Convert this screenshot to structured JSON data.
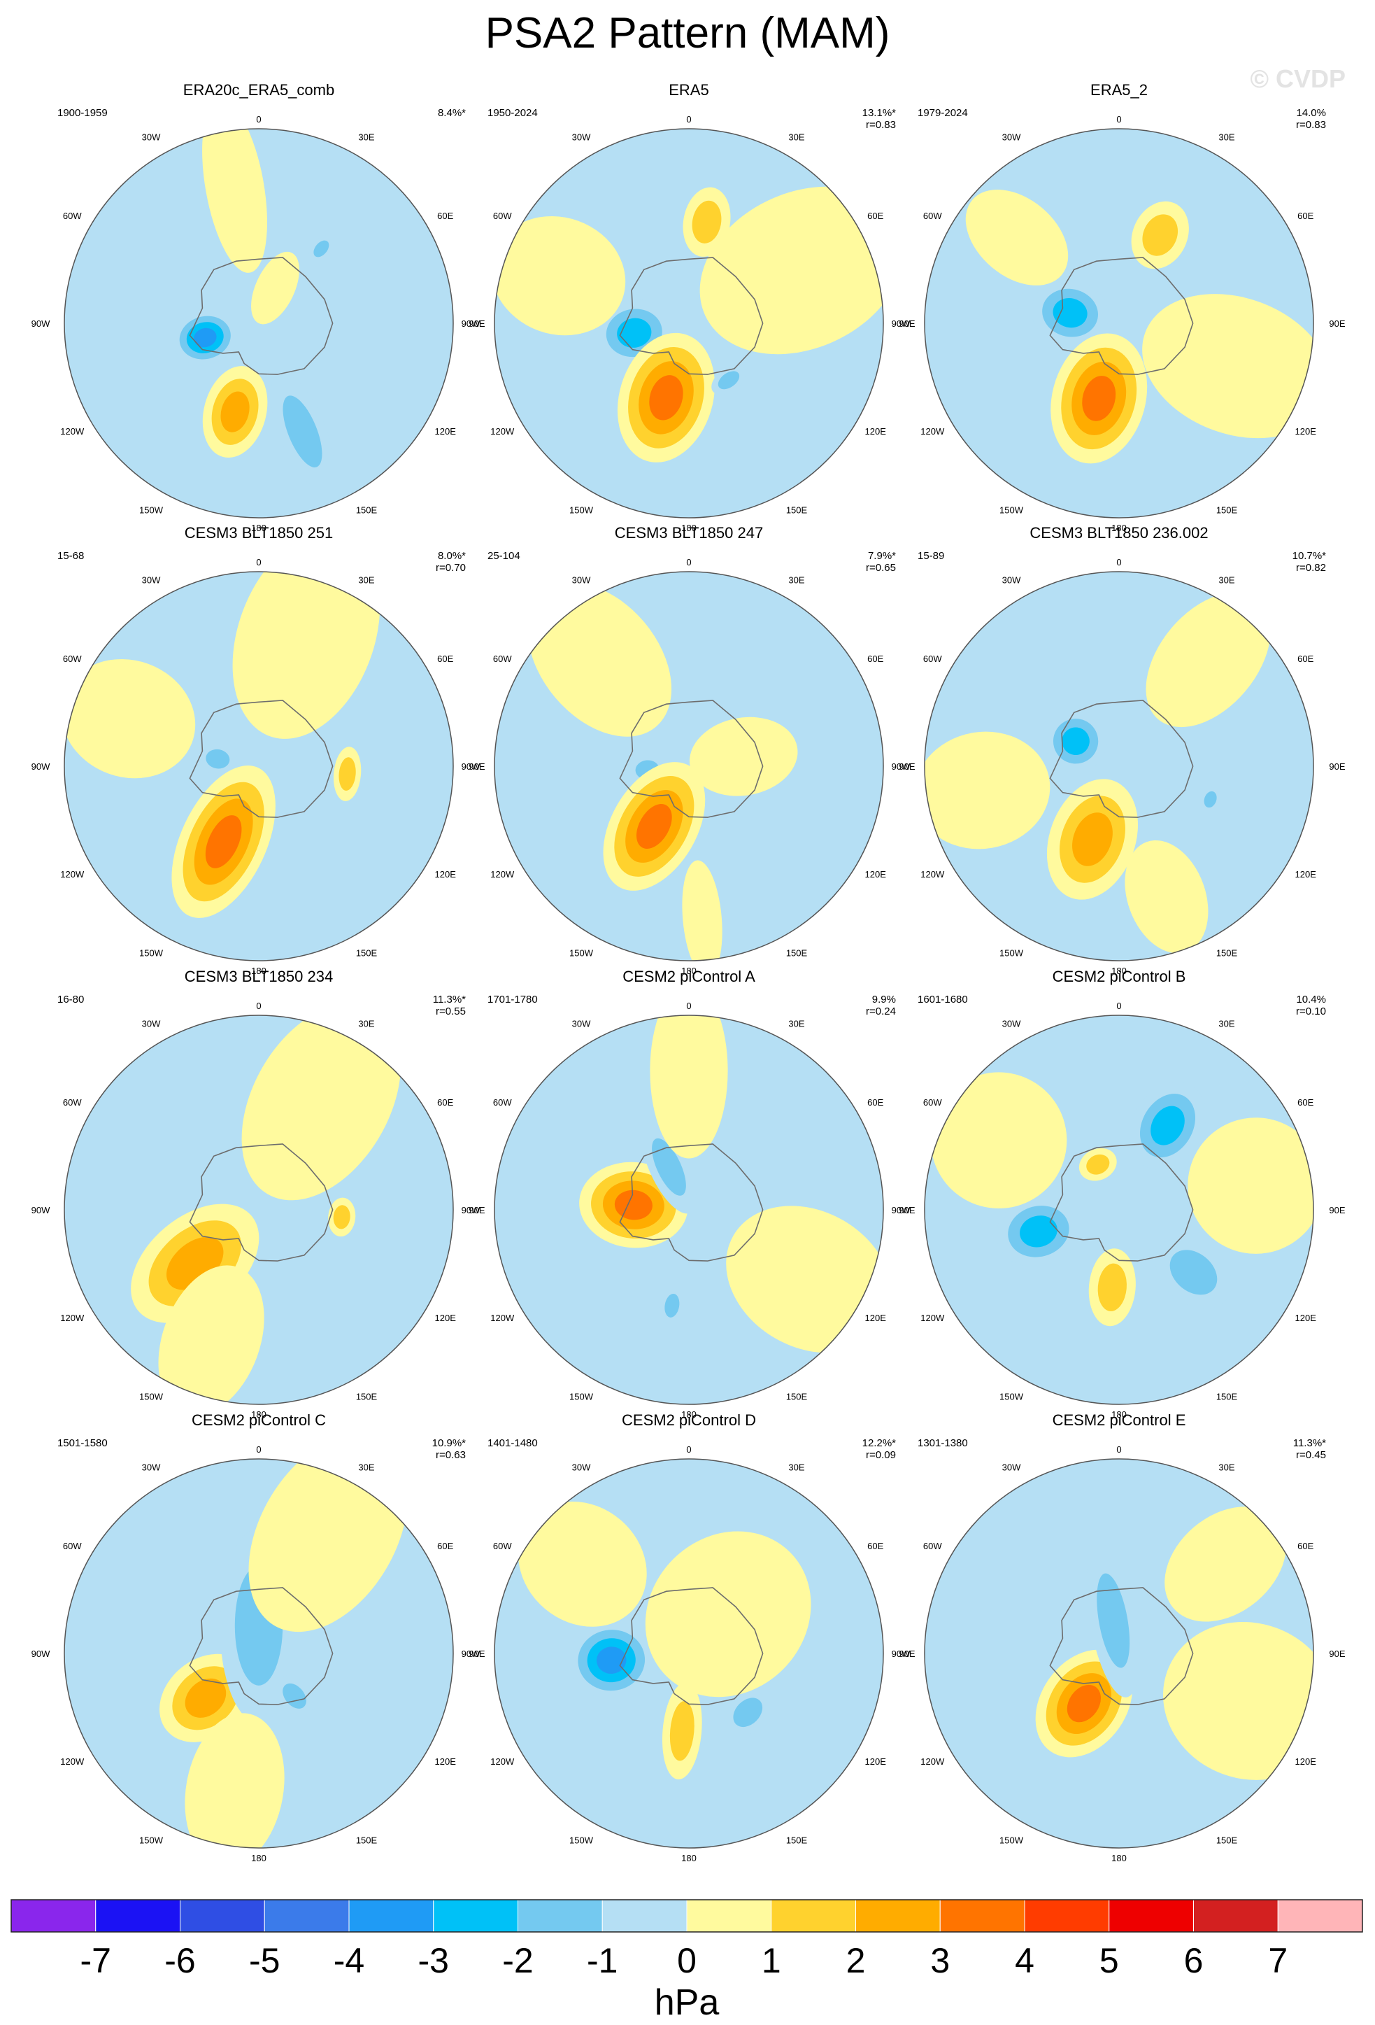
{
  "figure": {
    "title": "PSA2 Pattern (MAM)",
    "credit": "© CVDP",
    "units": "hPa"
  },
  "chart_data": {
    "type": "polar contour map (filled)",
    "projection": "south polar stereographic",
    "variable": "PSA2 pattern regression",
    "units": "hPa",
    "lon_labels": [
      "0",
      "30E",
      "60E",
      "90E",
      "120E",
      "150E",
      "180",
      "150W",
      "120W",
      "90W",
      "60W",
      "30W"
    ],
    "colorbar": {
      "ticks": [
        -7,
        -6,
        -5,
        -4,
        -3,
        -2,
        -1,
        0,
        1,
        2,
        3,
        4,
        5,
        6,
        7
      ],
      "colors": [
        "#8a26ec",
        "#1b12f4",
        "#2f4ee4",
        "#3b7bea",
        "#1f9bf5",
        "#00c1f7",
        "#74c9f0",
        "#b5dff4",
        "#fffa9e",
        "#ffd22e",
        "#ffac00",
        "#ff7400",
        "#ff3c00",
        "#ee0000",
        "#d32020",
        "#ffb5b8"
      ]
    },
    "panels": [
      {
        "title": "ERA20c_ERA5_comb",
        "period": "1900-1959",
        "pct": "8.4%*",
        "r": "",
        "features": [
          {
            "lon": -105,
            "lat": -70,
            "val": -4,
            "rx": 0.17,
            "ry": 0.14
          },
          {
            "lon": -165,
            "lat": -57,
            "val": 3,
            "rx": 0.24,
            "ry": 0.16
          },
          {
            "lon": 158,
            "lat": -48,
            "val": -2,
            "rx": 0.32,
            "ry": 0.12
          },
          {
            "lon": -10,
            "lat": -40,
            "val": 1,
            "rx": 0.45,
            "ry": 0.15
          },
          {
            "lon": 40,
            "lat": -55,
            "val": -2,
            "rx": 0.08,
            "ry": 0.05
          },
          {
            "lon": 25,
            "lat": -76,
            "val": 1,
            "rx": 0.2,
            "ry": 0.1
          }
        ]
      },
      {
        "title": "ERA5",
        "period": "1950-2024",
        "pct": "13.1%*",
        "r": "r=0.83",
        "features": [
          {
            "lon": -100,
            "lat": -70,
            "val": -3,
            "rx": 0.2,
            "ry": 0.17
          },
          {
            "lon": -163,
            "lat": -62,
            "val": 4,
            "rx": 0.34,
            "ry": 0.24
          },
          {
            "lon": 10,
            "lat": -53,
            "val": 2,
            "rx": 0.18,
            "ry": 0.12
          },
          {
            "lon": 145,
            "lat": -65,
            "val": -2,
            "rx": 0.06,
            "ry": 0.1
          },
          {
            "lon": 65,
            "lat": -45,
            "val": 1,
            "rx": 0.55,
            "ry": 0.4
          },
          {
            "lon": -70,
            "lat": -40,
            "val": 1,
            "rx": 0.35,
            "ry": 0.3
          }
        ]
      },
      {
        "title": "ERA5_2",
        "period": "1979-2024",
        "pct": "14.0%",
        "r": "r=0.83",
        "features": [
          {
            "lon": -78,
            "lat": -72,
            "val": -3,
            "rx": 0.2,
            "ry": 0.17
          },
          {
            "lon": -165,
            "lat": -62,
            "val": 4,
            "rx": 0.34,
            "ry": 0.24
          },
          {
            "lon": 25,
            "lat": -55,
            "val": 2,
            "rx": 0.18,
            "ry": 0.14
          },
          {
            "lon": 110,
            "lat": -45,
            "val": 1,
            "rx": 0.5,
            "ry": 0.35
          },
          {
            "lon": -50,
            "lat": -42,
            "val": 1,
            "rx": 0.3,
            "ry": 0.2
          }
        ]
      },
      {
        "title": "CESM3 BLT1850 251",
        "period": "15-68",
        "pct": "8.0%*",
        "r": "r=0.70",
        "features": [
          {
            "lon": -80,
            "lat": -75,
            "val": -2,
            "rx": 0.1,
            "ry": 0.08
          },
          {
            "lon": -155,
            "lat": -60,
            "val": 4,
            "rx": 0.42,
            "ry": 0.22
          },
          {
            "lon": 95,
            "lat": -58,
            "val": 2,
            "rx": 0.07,
            "ry": 0.14
          },
          {
            "lon": 20,
            "lat": -40,
            "val": 1,
            "rx": 0.55,
            "ry": 0.35
          },
          {
            "lon": -70,
            "lat": -40,
            "val": 1,
            "rx": 0.35,
            "ry": 0.3
          }
        ]
      },
      {
        "title": "CESM3 BLT1850 247",
        "period": "25-104",
        "pct": "7.9%*",
        "r": "r=0.65",
        "features": [
          {
            "lon": -95,
            "lat": -75,
            "val": -2,
            "rx": 0.1,
            "ry": 0.08
          },
          {
            "lon": -150,
            "lat": -65,
            "val": 4,
            "rx": 0.36,
            "ry": 0.22
          },
          {
            "lon": 80,
            "lat": -70,
            "val": 1,
            "rx": 0.28,
            "ry": 0.2
          },
          {
            "lon": -40,
            "lat": -40,
            "val": 1,
            "rx": 0.45,
            "ry": 0.3
          },
          {
            "lon": 175,
            "lat": -35,
            "val": 1,
            "rx": 0.3,
            "ry": 0.1
          }
        ]
      },
      {
        "title": "CESM3 BLT1850 236.002",
        "period": "15-89",
        "pct": "10.7%*",
        "r": "r=0.82",
        "features": [
          {
            "lon": -60,
            "lat": -72,
            "val": -3,
            "rx": 0.16,
            "ry": 0.16
          },
          {
            "lon": -160,
            "lat": -62,
            "val": 3,
            "rx": 0.32,
            "ry": 0.22
          },
          {
            "lon": 110,
            "lat": -55,
            "val": -2,
            "rx": 0.05,
            "ry": 0.07
          },
          {
            "lon": 40,
            "lat": -40,
            "val": 1,
            "rx": 0.4,
            "ry": 0.25
          },
          {
            "lon": 160,
            "lat": -40,
            "val": 1,
            "rx": 0.3,
            "ry": 0.2
          },
          {
            "lon": -100,
            "lat": -40,
            "val": 1,
            "rx": 0.35,
            "ry": 0.3
          }
        ]
      },
      {
        "title": "CESM3 BLT1850 234",
        "period": "16-80",
        "pct": "11.3%*",
        "r": "r=0.55",
        "features": [
          {
            "lon": -130,
            "lat": -60,
            "val": 3,
            "rx": 0.38,
            "ry": 0.24
          },
          {
            "lon": 95,
            "lat": -60,
            "val": 2,
            "rx": 0.07,
            "ry": 0.1
          },
          {
            "lon": 15,
            "lat": -72,
            "val": 2,
            "rx": 0.06,
            "ry": 0.08
          },
          {
            "lon": 30,
            "lat": -45,
            "val": 1,
            "rx": 0.55,
            "ry": 0.35
          },
          {
            "lon": -160,
            "lat": -40,
            "val": 1,
            "rx": 0.4,
            "ry": 0.25
          }
        ]
      },
      {
        "title": "CESM2 piControl A",
        "period": "1701-1780",
        "pct": "9.9%",
        "r": "r=0.24",
        "features": [
          {
            "lon": -85,
            "lat": -70,
            "val": 4,
            "rx": 0.28,
            "ry": 0.22
          },
          {
            "lon": -25,
            "lat": -73,
            "val": -2,
            "rx": 0.26,
            "ry": 0.1
          },
          {
            "lon": -170,
            "lat": -55,
            "val": -2,
            "rx": 0.1,
            "ry": 0.06
          },
          {
            "lon": 120,
            "lat": -40,
            "val": 1,
            "rx": 0.45,
            "ry": 0.35
          },
          {
            "lon": 0,
            "lat": -40,
            "val": 1,
            "rx": 0.45,
            "ry": 0.2
          }
        ]
      },
      {
        "title": "CESM2 piControl B",
        "period": "1601-1680",
        "pct": "10.4%",
        "r": "r=0.10",
        "features": [
          {
            "lon": 30,
            "lat": -55,
            "val": -3,
            "rx": 0.24,
            "ry": 0.18
          },
          {
            "lon": -105,
            "lat": -60,
            "val": -3,
            "rx": 0.22,
            "ry": 0.18
          },
          {
            "lon": 130,
            "lat": -55,
            "val": -2,
            "rx": 0.22,
            "ry": 0.16
          },
          {
            "lon": -25,
            "lat": -72,
            "val": 2,
            "rx": 0.08,
            "ry": 0.1
          },
          {
            "lon": -175,
            "lat": -62,
            "val": 2,
            "rx": 0.2,
            "ry": 0.12
          },
          {
            "lon": 80,
            "lat": -40,
            "val": 1,
            "rx": 0.35,
            "ry": 0.35
          },
          {
            "lon": -60,
            "lat": -40,
            "val": 1,
            "rx": 0.35,
            "ry": 0.35
          }
        ]
      },
      {
        "title": "CESM2 piControl C",
        "period": "1501-1580",
        "pct": "10.9%*",
        "r": "r=0.63",
        "features": [
          {
            "lon": -130,
            "lat": -65,
            "val": 3,
            "rx": 0.26,
            "ry": 0.2
          },
          {
            "lon": 0,
            "lat": -80,
            "val": -2,
            "rx": 0.5,
            "ry": 0.2
          },
          {
            "lon": 140,
            "lat": -70,
            "val": -2,
            "rx": 0.12,
            "ry": 0.08
          },
          {
            "lon": 30,
            "lat": -40,
            "val": 1,
            "rx": 0.55,
            "ry": 0.35
          },
          {
            "lon": -170,
            "lat": -40,
            "val": 1,
            "rx": 0.4,
            "ry": 0.25
          }
        ]
      },
      {
        "title": "CESM2 piControl D",
        "period": "1401-1480",
        "pct": "12.2%*",
        "r": "r=0.09",
        "features": [
          {
            "lon": -95,
            "lat": -62,
            "val": -4,
            "rx": 0.22,
            "ry": 0.2
          },
          {
            "lon": 135,
            "lat": -60,
            "val": -2,
            "rx": 0.1,
            "ry": 0.14
          },
          {
            "lon": 0,
            "lat": -60,
            "val": 2,
            "rx": 0.1,
            "ry": 0.07
          },
          {
            "lon": -175,
            "lat": -62,
            "val": 2,
            "rx": 0.25,
            "ry": 0.1
          },
          {
            "lon": 45,
            "lat": -70,
            "val": 1,
            "rx": 0.45,
            "ry": 0.4
          },
          {
            "lon": -50,
            "lat": -40,
            "val": 1,
            "rx": 0.35,
            "ry": 0.3
          }
        ]
      },
      {
        "title": "CESM2 piControl E",
        "period": "1301-1380",
        "pct": "11.3%*",
        "r": "r=0.45",
        "features": [
          {
            "lon": -145,
            "lat": -68,
            "val": 4,
            "rx": 0.3,
            "ry": 0.22
          },
          {
            "lon": -10,
            "lat": -78,
            "val": -2,
            "rx": 0.4,
            "ry": 0.12
          },
          {
            "lon": 90,
            "lat": -60,
            "val": 2,
            "rx": 0.04,
            "ry": 0.06
          },
          {
            "lon": 110,
            "lat": -40,
            "val": 1,
            "rx": 0.45,
            "ry": 0.4
          },
          {
            "lon": 50,
            "lat": -40,
            "val": 1,
            "rx": 0.35,
            "ry": 0.25
          }
        ]
      }
    ]
  }
}
